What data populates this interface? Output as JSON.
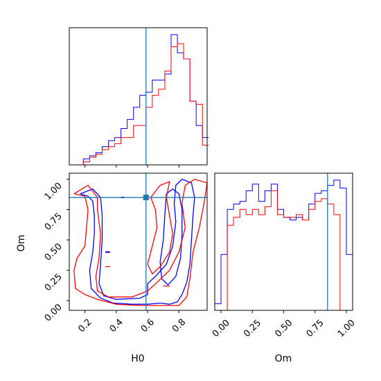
{
  "colors": {
    "series_a": "#0000ff",
    "series_b": "#ff0000",
    "truth": "#1f77b4",
    "frame": "#000000"
  },
  "chart_data": [
    {
      "type": "histogram",
      "panel": "H0 marginal",
      "x_range": [
        0.1,
        0.98
      ],
      "bins": [
        0.15,
        0.19,
        0.23,
        0.27,
        0.31,
        0.35,
        0.39,
        0.43,
        0.47,
        0.51,
        0.55,
        0.59,
        0.63,
        0.67,
        0.71,
        0.75,
        0.79,
        0.83,
        0.87,
        0.91,
        0.95,
        0.99
      ],
      "series": [
        {
          "color": "blue",
          "values": [
            0,
            0.04,
            0.06,
            0.08,
            0.12,
            0.16,
            0.18,
            0.24,
            0.3,
            0.38,
            0.46,
            0.48,
            0.56,
            0.56,
            0.6,
            0.86,
            0.74,
            0.7,
            0.42,
            0.26,
            0.18,
            0.18
          ]
        },
        {
          "color": "red",
          "values": [
            0,
            0.02,
            0.05,
            0.07,
            0.1,
            0.12,
            0.14,
            0.18,
            0.18,
            0.26,
            0.26,
            0.38,
            0.46,
            0.5,
            0.62,
            0.78,
            0.8,
            0.7,
            0.42,
            0.4,
            0.13,
            0.13
          ]
        }
      ],
      "truth_line": 0.59
    },
    {
      "type": "contour",
      "panel": "H0 vs Om",
      "xlabel": "H0",
      "ylabel": "Om",
      "x_ticks": [
        "0.2",
        "0.4",
        "0.6",
        "0.8"
      ],
      "x_tick_values": [
        0.2,
        0.4,
        0.6,
        0.8
      ],
      "y_ticks": [
        "0.00",
        "0.25",
        "0.50",
        "0.75",
        "1.00"
      ],
      "y_tick_values": [
        0.0,
        0.25,
        0.5,
        0.75,
        1.0
      ],
      "x_range": [
        0.1,
        0.98
      ],
      "y_range": [
        -0.08,
        1.05
      ],
      "truth_point": [
        0.59,
        0.85
      ],
      "series": [
        {
          "color": "blue",
          "contours": [
            [
              [
                0.17,
                0.88
              ],
              [
                0.22,
                0.86
              ],
              [
                0.25,
                0.82
              ],
              [
                0.26,
                0.7
              ],
              [
                0.26,
                0.55
              ],
              [
                0.25,
                0.4
              ],
              [
                0.23,
                0.25
              ],
              [
                0.24,
                0.1
              ],
              [
                0.3,
                0.02
              ],
              [
                0.38,
                -0.02
              ],
              [
                0.5,
                -0.03
              ],
              [
                0.6,
                -0.03
              ],
              [
                0.68,
                -0.02
              ],
              [
                0.74,
                -0.03
              ],
              [
                0.79,
                -0.01
              ],
              [
                0.82,
                0.05
              ],
              [
                0.85,
                0.15
              ],
              [
                0.87,
                0.3
              ],
              [
                0.88,
                0.5
              ],
              [
                0.89,
                0.7
              ],
              [
                0.9,
                0.85
              ],
              [
                0.88,
                0.97
              ],
              [
                0.82,
                1.0
              ],
              [
                0.78,
                0.95
              ],
              [
                0.77,
                0.8
              ],
              [
                0.78,
                0.65
              ],
              [
                0.76,
                0.45
              ],
              [
                0.72,
                0.3
              ],
              [
                0.65,
                0.2
              ],
              [
                0.6,
                0.14
              ],
              [
                0.6,
                0.05
              ],
              [
                0.55,
                0.02
              ],
              [
                0.4,
                0.01
              ],
              [
                0.32,
                0.04
              ],
              [
                0.29,
                0.14
              ],
              [
                0.3,
                0.3
              ],
              [
                0.31,
                0.5
              ],
              [
                0.31,
                0.7
              ],
              [
                0.3,
                0.85
              ],
              [
                0.25,
                0.92
              ],
              [
                0.17,
                0.88
              ]
            ],
            [
              [
                0.72,
                0.88
              ],
              [
                0.76,
                0.92
              ],
              [
                0.8,
                0.88
              ],
              [
                0.82,
                0.75
              ],
              [
                0.82,
                0.55
              ],
              [
                0.81,
                0.35
              ],
              [
                0.78,
                0.2
              ],
              [
                0.73,
                0.13
              ],
              [
                0.69,
                0.18
              ],
              [
                0.68,
                0.32
              ],
              [
                0.7,
                0.5
              ],
              [
                0.71,
                0.7
              ],
              [
                0.72,
                0.88
              ]
            ]
          ]
        },
        {
          "color": "red",
          "contours": [
            [
              [
                0.13,
                0.88
              ],
              [
                0.2,
                0.86
              ],
              [
                0.22,
                0.75
              ],
              [
                0.21,
                0.6
              ],
              [
                0.2,
                0.45
              ],
              [
                0.15,
                0.35
              ],
              [
                0.13,
                0.25
              ],
              [
                0.14,
                0.1
              ],
              [
                0.2,
                0.05
              ],
              [
                0.28,
                0.01
              ],
              [
                0.4,
                -0.03
              ],
              [
                0.55,
                -0.04
              ],
              [
                0.7,
                -0.04
              ],
              [
                0.8,
                -0.04
              ],
              [
                0.85,
                0.03
              ],
              [
                0.87,
                0.18
              ],
              [
                0.89,
                0.4
              ],
              [
                0.93,
                0.6
              ],
              [
                0.96,
                0.8
              ],
              [
                0.98,
                0.97
              ],
              [
                0.9,
                1.0
              ],
              [
                0.84,
                0.95
              ],
              [
                0.82,
                0.8
              ],
              [
                0.84,
                0.6
              ],
              [
                0.8,
                0.4
              ],
              [
                0.74,
                0.25
              ],
              [
                0.66,
                0.15
              ],
              [
                0.6,
                0.08
              ],
              [
                0.5,
                0.03
              ],
              [
                0.35,
                0.03
              ],
              [
                0.28,
                0.08
              ],
              [
                0.27,
                0.2
              ],
              [
                0.29,
                0.35
              ],
              [
                0.3,
                0.55
              ],
              [
                0.28,
                0.75
              ],
              [
                0.28,
                0.85
              ],
              [
                0.22,
                0.95
              ],
              [
                0.13,
                0.88
              ]
            ],
            [
              [
                0.62,
                0.85
              ],
              [
                0.68,
                0.95
              ],
              [
                0.74,
                0.98
              ],
              [
                0.72,
                0.85
              ],
              [
                0.74,
                0.7
              ],
              [
                0.76,
                0.55
              ],
              [
                0.74,
                0.4
              ],
              [
                0.68,
                0.28
              ],
              [
                0.63,
                0.22
              ],
              [
                0.6,
                0.3
              ],
              [
                0.63,
                0.45
              ],
              [
                0.66,
                0.6
              ],
              [
                0.65,
                0.75
              ],
              [
                0.62,
                0.85
              ]
            ]
          ]
        }
      ]
    },
    {
      "type": "histogram",
      "panel": "Om marginal",
      "xlabel": "Om",
      "x_ticks": [
        "0.00",
        "0.25",
        "0.50",
        "0.75",
        "1.00"
      ],
      "x_tick_values": [
        0.0,
        0.25,
        0.5,
        0.75,
        1.0
      ],
      "x_range": [
        -0.05,
        1.05
      ],
      "bins": [
        -0.05,
        0.0,
        0.05,
        0.1,
        0.15,
        0.2,
        0.25,
        0.3,
        0.35,
        0.4,
        0.45,
        0.5,
        0.55,
        0.6,
        0.65,
        0.7,
        0.75,
        0.8,
        0.85,
        0.9,
        0.95,
        1.0,
        1.05
      ],
      "series": [
        {
          "color": "blue",
          "values": [
            0.05,
            0.42,
            0.76,
            0.8,
            0.82,
            0.9,
            0.95,
            0.82,
            0.9,
            0.95,
            0.76,
            0.7,
            0.68,
            0.7,
            0.68,
            0.8,
            0.88,
            0.9,
            0.94,
            0.98,
            0.92,
            0.42
          ]
        },
        {
          "color": "red",
          "values": [
            0.0,
            0.0,
            0.64,
            0.7,
            0.76,
            0.72,
            0.76,
            0.72,
            0.78,
            0.9,
            0.72,
            0.7,
            0.7,
            0.72,
            0.68,
            0.76,
            0.82,
            0.84,
            0.8,
            0.72,
            0.0,
            0.0
          ]
        }
      ],
      "truth_line": 0.85
    }
  ]
}
